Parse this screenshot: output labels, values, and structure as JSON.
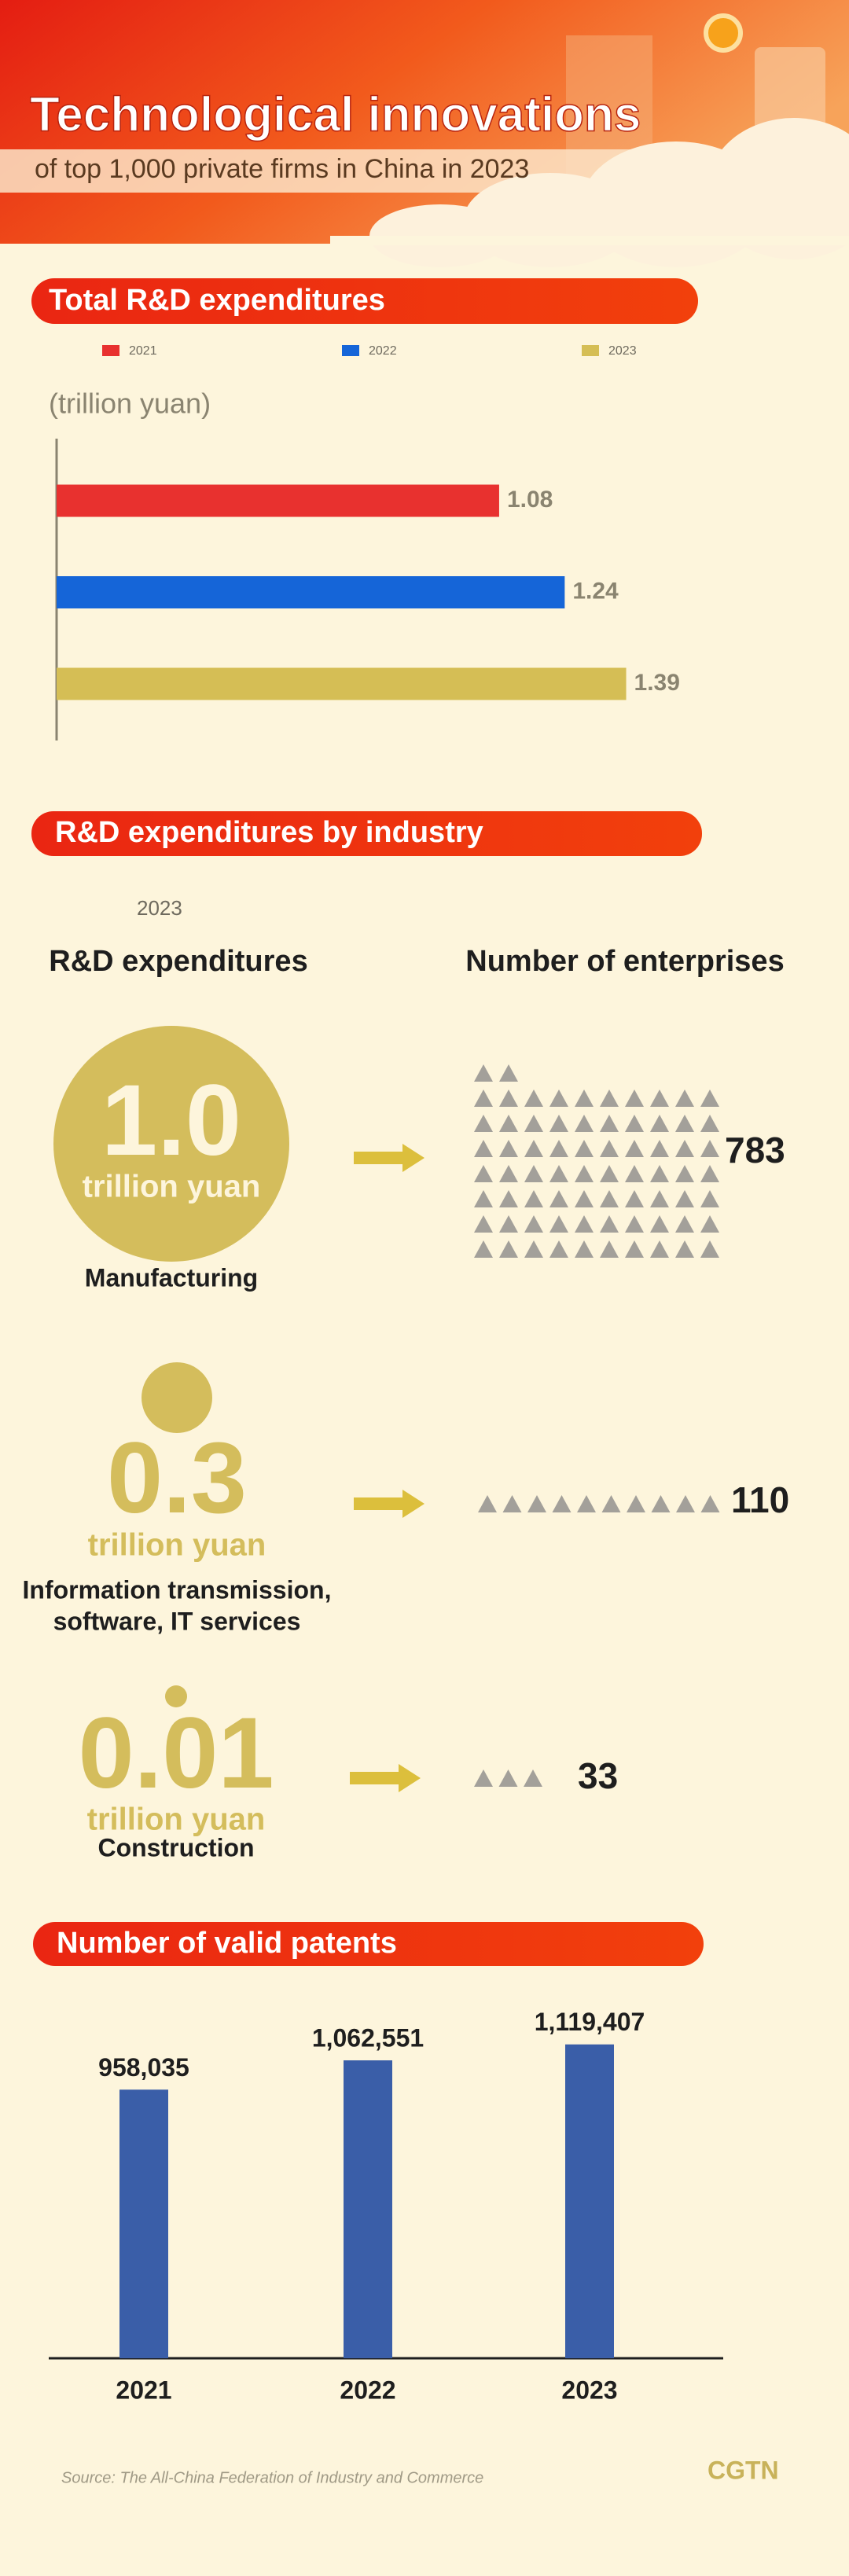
{
  "header": {
    "title": "Technological innovations",
    "subtitle": "of top 1,000 private firms in China in 2023"
  },
  "chart_data": [
    {
      "type": "hbar",
      "title": "Total R&D expenditures",
      "unit": "(trillion yuan)",
      "categories": [
        null
      ],
      "series": [
        {
          "name": "2021",
          "color": "#e8312f",
          "values": [
            1.08
          ]
        },
        {
          "name": "2022",
          "color": "#1565d8",
          "values": [
            1.24
          ]
        },
        {
          "name": "2023",
          "color": "#d5be55",
          "values": [
            1.39
          ]
        }
      ],
      "xlim": [
        0,
        1.6
      ]
    },
    {
      "type": "bar",
      "title": "Number of valid patents",
      "categories": [
        "2021",
        "2022",
        "2023"
      ],
      "values": [
        958035,
        1062551,
        1119407
      ],
      "value_labels": [
        "958,035",
        "1,062,551",
        "1,119,407"
      ],
      "color": "#3a5ea8",
      "ylim": [
        0,
        1200000
      ]
    }
  ],
  "industry": {
    "title": "R&D expenditures by industry",
    "year": "2023",
    "columns": [
      "R&D expenditures",
      "Number of enterprises"
    ],
    "unit": "trillion yuan",
    "items": [
      {
        "name": [
          "Manufacturing"
        ],
        "expenditure": 1.0,
        "expenditure_label": "1.0",
        "enterprises": 783
      },
      {
        "name": [
          "Information transmission,",
          "software, IT services"
        ],
        "expenditure": 0.3,
        "enterprises": 110
      },
      {
        "name": [
          "Construction"
        ],
        "expenditure": 0.01,
        "enterprises": 33
      }
    ]
  },
  "source": "Source: The All-China Federation of Industry and Commerce",
  "logo": "CGTN"
}
